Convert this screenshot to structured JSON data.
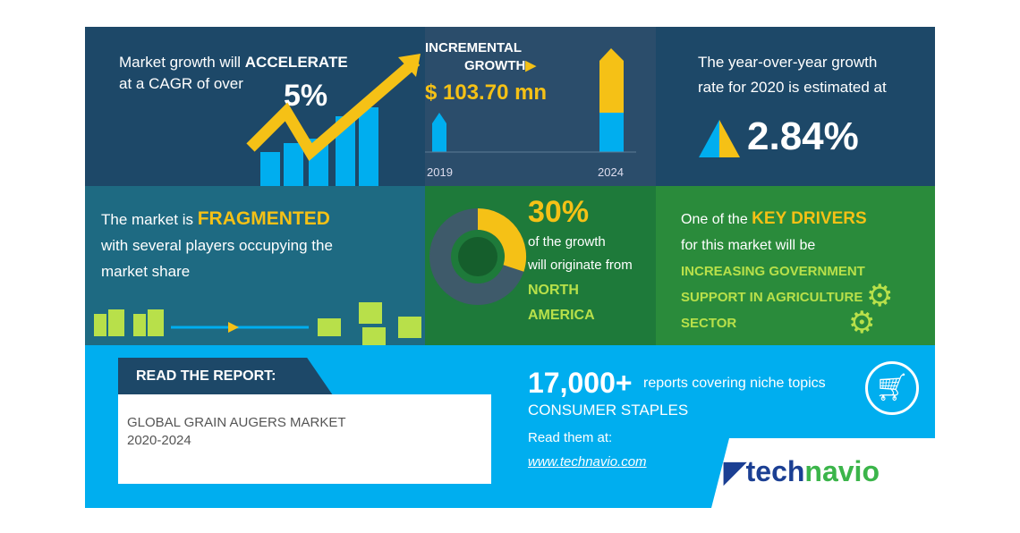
{
  "cagr": {
    "line1_pre": "Market growth will ",
    "line1_bold": "ACCELERATE",
    "line2": "at a CAGR of over",
    "value": "5%"
  },
  "incremental": {
    "title1": "INCREMENTAL",
    "title2": "GROWTH",
    "value": "$ 103.70 mn",
    "year_start": "2019",
    "year_end": "2024"
  },
  "yoy": {
    "line1": "The year-over-year growth",
    "line2": "rate for 2020 is estimated at",
    "value": "2.84%"
  },
  "fragmented": {
    "pre": "The market is ",
    "bold": "FRAGMENTED",
    "line2": "with several players occupying the",
    "line3": "market share"
  },
  "region": {
    "value": "30%",
    "share": 0.3,
    "line1": "of the growth",
    "line2": "will originate from",
    "region1": "NORTH",
    "region2": "AMERICA"
  },
  "drivers": {
    "pre": "One of the ",
    "bold": "KEY DRIVERS",
    "line2": "for this market will be",
    "d1": "INCREASING GOVERNMENT",
    "d2": "SUPPORT IN AGRICULTURE",
    "d3": "SECTOR"
  },
  "report": {
    "label": "READ THE REPORT:",
    "title": "GLOBAL GRAIN AUGERS MARKET",
    "years": "2020-2024"
  },
  "promo": {
    "count": "17,000+",
    "count_text": "reports covering niche topics",
    "category": "CONSUMER STAPLES",
    "read": "Read them at:",
    "url": "www.technavio.com",
    "icon": "shopping-cart-icon"
  },
  "logo": {
    "part1": "tech",
    "part2": "navio"
  },
  "colors": {
    "navy": "#1d4868",
    "yellow": "#f5c116",
    "blue": "#00aeef",
    "green": "#22813c"
  }
}
